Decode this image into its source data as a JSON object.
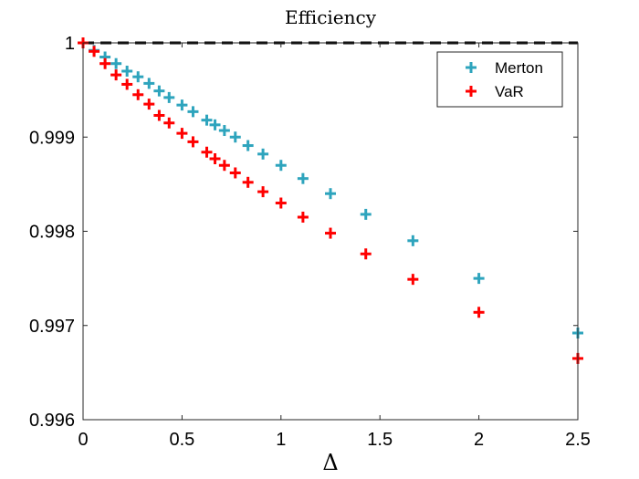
{
  "chart_data": {
    "type": "scatter",
    "title": "Efficiency",
    "xlabel": "Δ",
    "ylabel": "",
    "xlim": [
      0,
      2.5
    ],
    "ylim": [
      0.996,
      1.0
    ],
    "xticks": [
      0,
      0.5,
      1,
      1.5,
      2,
      2.5
    ],
    "xtick_labels": [
      "0",
      "0.5",
      "1",
      "1.5",
      "2",
      "2.5"
    ],
    "yticks": [
      0.996,
      0.997,
      0.998,
      0.999,
      1.0
    ],
    "ytick_labels": [
      "0.996",
      "0.997",
      "0.998",
      "0.999",
      "1"
    ],
    "legend_position": "top-right",
    "reference_line": {
      "y": 1,
      "style": "dashed",
      "color": "#000000"
    },
    "marker": "+",
    "series": [
      {
        "name": "Merton",
        "color": "#2ea4bd",
        "x": [
          0,
          0.0556,
          0.1111,
          0.1667,
          0.2222,
          0.2778,
          0.3333,
          0.3846,
          0.4348,
          0.5,
          0.5556,
          0.625,
          0.6667,
          0.7143,
          0.7692,
          0.8333,
          0.9091,
          1.0,
          1.1111,
          1.25,
          1.4286,
          1.6667,
          2.0,
          2.5
        ],
        "y": [
          1.0,
          0.99992,
          0.99985,
          0.99978,
          0.9997,
          0.99964,
          0.99957,
          0.99949,
          0.99942,
          0.99934,
          0.99927,
          0.99918,
          0.99913,
          0.99907,
          0.999,
          0.99891,
          0.99882,
          0.9987,
          0.99856,
          0.9984,
          0.99818,
          0.9979,
          0.9975,
          0.99692
        ]
      },
      {
        "name": "VaR",
        "color": "#ff0000",
        "x": [
          0,
          0.0556,
          0.1111,
          0.1667,
          0.2222,
          0.2778,
          0.3333,
          0.3846,
          0.4348,
          0.5,
          0.5556,
          0.625,
          0.6667,
          0.7143,
          0.7692,
          0.8333,
          0.9091,
          1.0,
          1.1111,
          1.25,
          1.4286,
          1.6667,
          2.0,
          2.5
        ],
        "y": [
          1.0,
          0.99991,
          0.99978,
          0.99966,
          0.99956,
          0.99945,
          0.99935,
          0.99923,
          0.99915,
          0.99904,
          0.99895,
          0.99884,
          0.99877,
          0.9987,
          0.99862,
          0.99852,
          0.99842,
          0.9983,
          0.99815,
          0.99798,
          0.99776,
          0.99749,
          0.99714,
          0.99665
        ]
      }
    ]
  }
}
